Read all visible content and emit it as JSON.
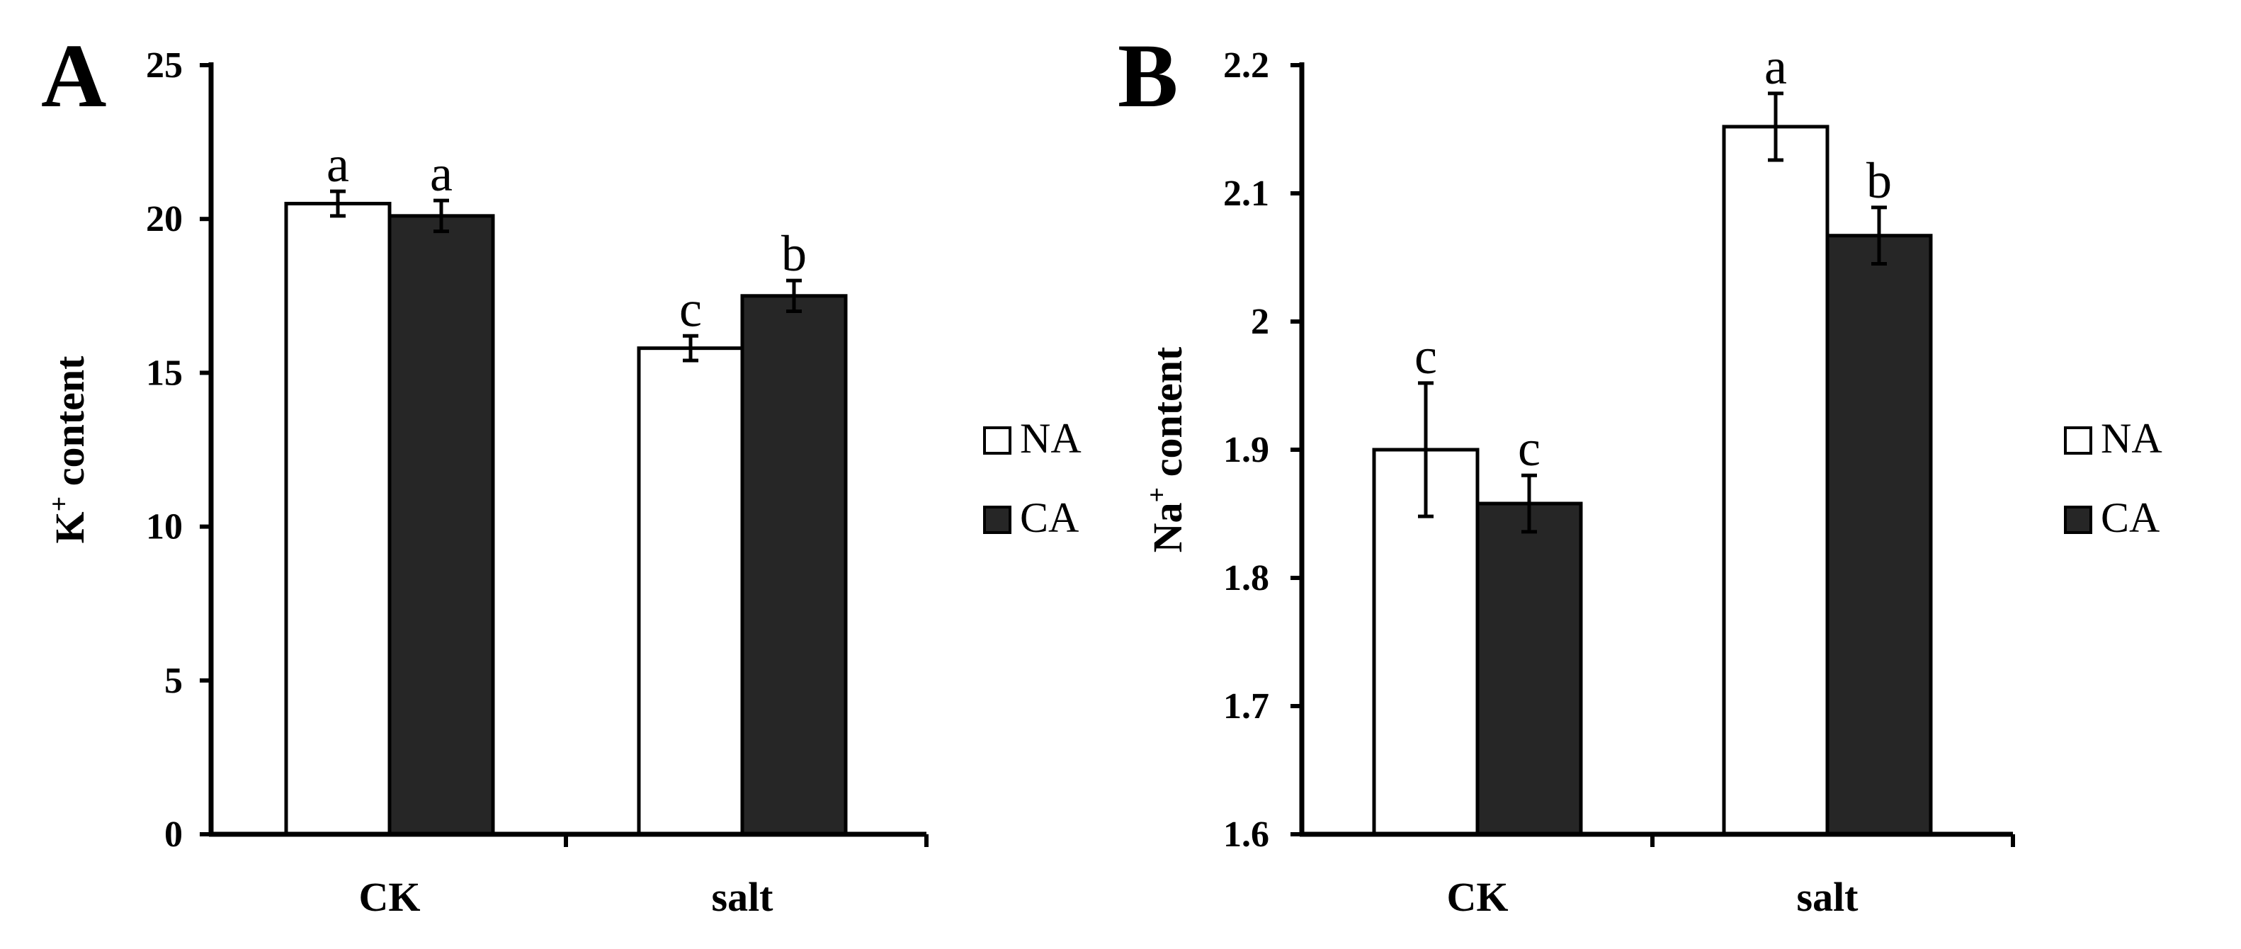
{
  "chart_data": [
    {
      "panel_label": "A",
      "type": "bar",
      "ylabel_main": "K",
      "ylabel_sup": "+",
      "ylabel_rest": " content",
      "ylim": [
        0,
        25
      ],
      "yticks": [
        0,
        5,
        10,
        15,
        20,
        25
      ],
      "ytick_labels": [
        "0",
        "5",
        "10",
        "15",
        "20",
        "25"
      ],
      "categories": [
        "CK",
        "salt"
      ],
      "grid": false,
      "legend_position": "right",
      "series": [
        {
          "name": "NA",
          "color": "#ffffff",
          "values": [
            20.5,
            15.8
          ],
          "errors": [
            0.4,
            0.4
          ],
          "labels": [
            "a",
            "c"
          ]
        },
        {
          "name": "CA",
          "color": "#262626",
          "values": [
            20.1,
            17.5
          ],
          "errors": [
            0.5,
            0.5
          ],
          "labels": [
            "a",
            "b"
          ]
        }
      ]
    },
    {
      "panel_label": "B",
      "type": "bar",
      "ylabel_main": "Na",
      "ylabel_sup": "+",
      "ylabel_rest": " content",
      "ylim": [
        1.6,
        2.2
      ],
      "yticks": [
        1.6,
        1.7,
        1.8,
        1.9,
        2.0,
        2.1,
        2.2
      ],
      "ytick_labels": [
        "1.6",
        "1.7",
        "1.8",
        "1.9",
        "2",
        "2.1",
        "2.2"
      ],
      "categories": [
        "CK",
        "salt"
      ],
      "grid": false,
      "legend_position": "right",
      "series": [
        {
          "name": "NA",
          "color": "#ffffff",
          "values": [
            1.9,
            2.152
          ],
          "errors": [
            0.052,
            0.026
          ],
          "labels": [
            "c",
            "a"
          ]
        },
        {
          "name": "CA",
          "color": "#262626",
          "values": [
            1.858,
            2.067
          ],
          "errors": [
            0.022,
            0.022
          ],
          "labels": [
            "c",
            "b"
          ]
        }
      ]
    }
  ]
}
